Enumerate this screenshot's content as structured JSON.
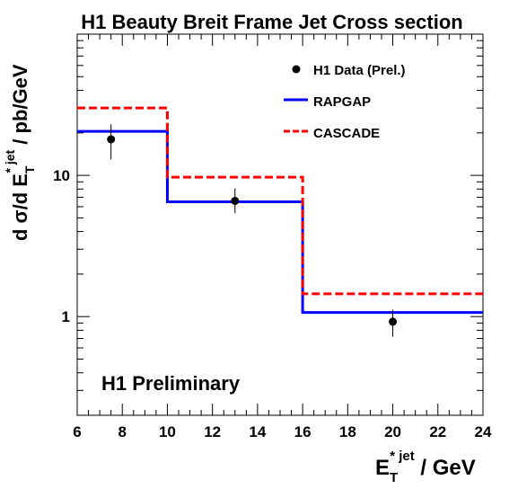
{
  "chart_data": {
    "type": "line",
    "title": "H1 Beauty Breit Frame Jet Cross section",
    "xlabel": {
      "main": "E",
      "sub": "T",
      "sup": "* jet",
      "unit": " / GeV"
    },
    "ylabel": {
      "prefix": "d σ/d E",
      "sub": "T",
      "sup": "* jet",
      "unit": " / pb/GeV"
    },
    "xlim": [
      6,
      24
    ],
    "ylim": [
      0.2,
      100
    ],
    "yscale": "log",
    "x_ticks": [
      "6",
      "8",
      "10",
      "12",
      "14",
      "16",
      "18",
      "20",
      "22",
      "24"
    ],
    "y_ticks": [
      "1",
      "10"
    ],
    "annotation": "H1 Preliminary",
    "legend_position": "top-right",
    "series": [
      {
        "name": "H1 Data (Prel.)",
        "kind": "points",
        "color": "#000000",
        "x": [
          7.5,
          13,
          20
        ],
        "y": [
          18.0,
          6.6,
          0.92
        ],
        "y_err_low": [
          13.0,
          5.4,
          0.72
        ],
        "y_err_high": [
          23.0,
          8.1,
          1.12
        ]
      },
      {
        "name": "RAPGAP",
        "kind": "step",
        "color": "#0000ff",
        "dash": "solid",
        "bin_edges": [
          6,
          10,
          16,
          24
        ],
        "values": [
          20.5,
          6.5,
          1.07
        ]
      },
      {
        "name": "CASCADE",
        "kind": "step",
        "color": "#ff0000",
        "dash": "dashed",
        "bin_edges": [
          6,
          10,
          16,
          24
        ],
        "values": [
          30.0,
          9.7,
          1.45
        ]
      }
    ]
  }
}
